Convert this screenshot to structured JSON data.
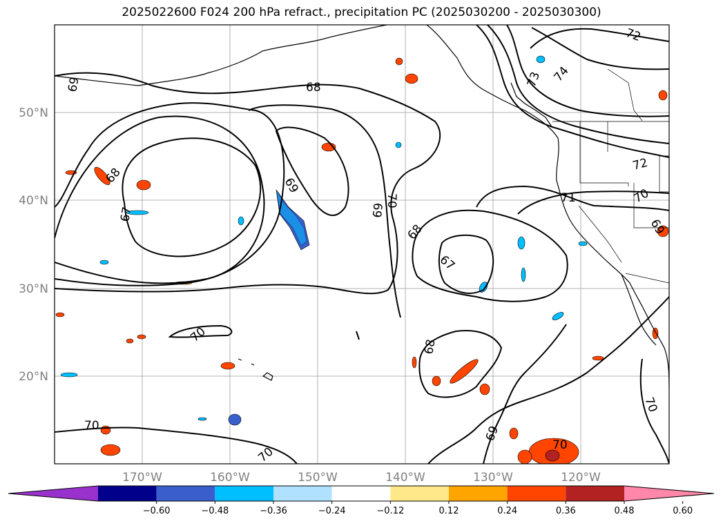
{
  "title": "2025022600 F024 200 hPa refract., precipitation PC (2025030200 - 2025030300)",
  "map": {
    "lat_ticks": [
      "50°N",
      "40°N",
      "30°N",
      "20°N"
    ],
    "lon_ticks": [
      "170°W",
      "160°W",
      "150°W",
      "140°W",
      "130°W",
      "120°W"
    ],
    "contour_labels": [
      "69",
      "68",
      "73",
      "74",
      "72",
      "68",
      "67",
      "69",
      "69",
      "70",
      "68",
      "67",
      "71",
      "72",
      "70",
      "69",
      "70",
      "68",
      "69",
      "70",
      "70",
      "70",
      "70"
    ]
  },
  "colorbar": {
    "colors": [
      "#9932cc",
      "#00008b",
      "#3a5fcd",
      "#00bfff",
      "#b0e2ff",
      "#ffffff",
      "#ffe88a",
      "#ffa500",
      "#ff4500",
      "#b22222",
      "#ff88aa"
    ],
    "tick_labels": [
      "−0.60",
      "−0.48",
      "−0.36",
      "−0.24",
      "−0.12",
      "0.12",
      "0.24",
      "0.36",
      "0.48",
      "0.60"
    ]
  }
}
